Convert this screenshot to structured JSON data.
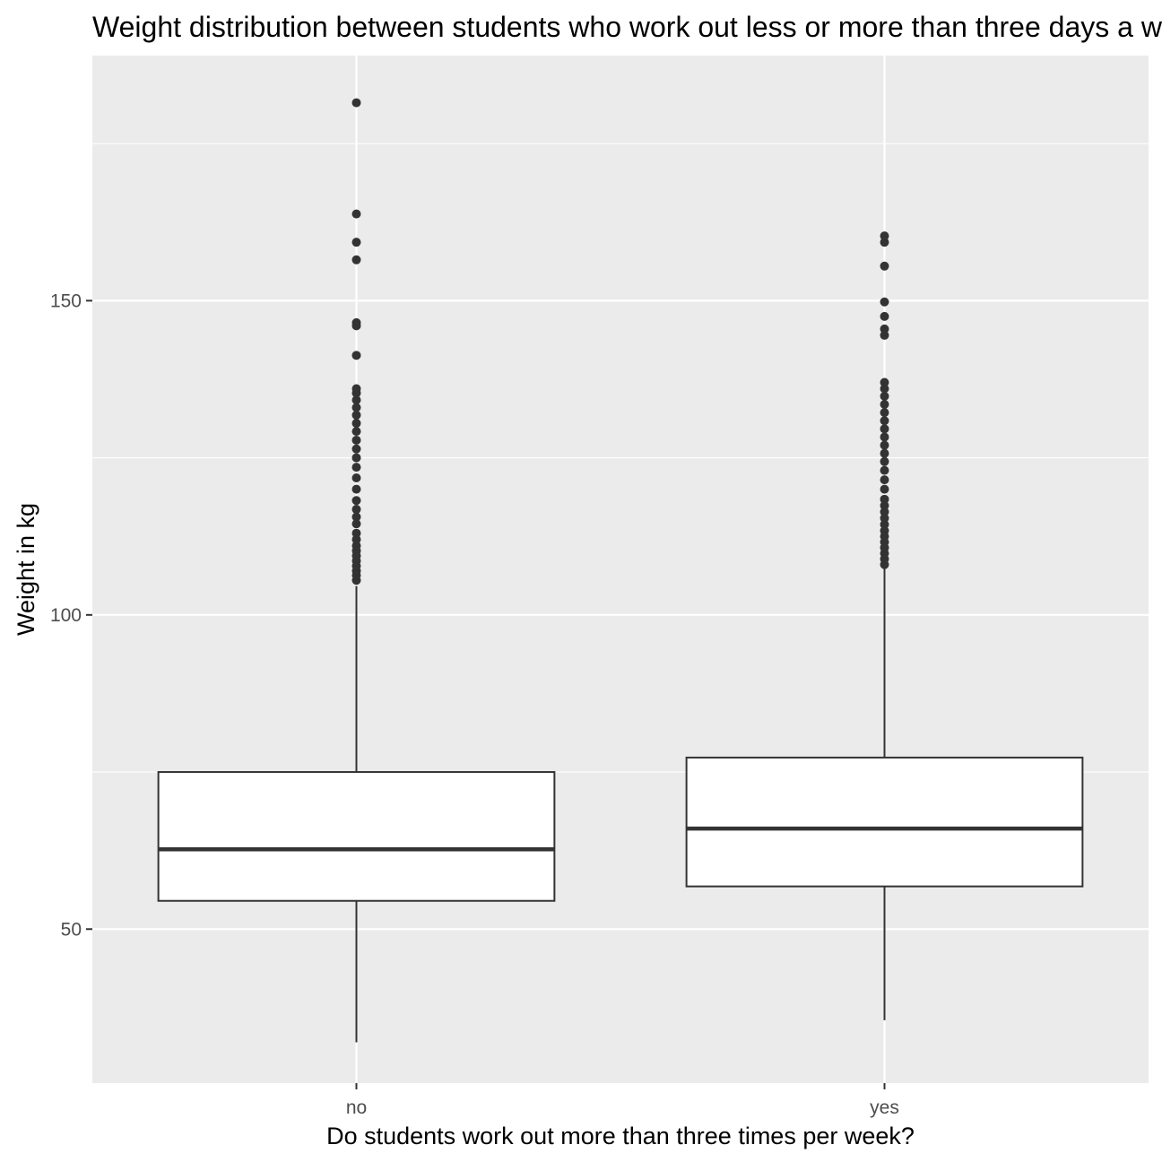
{
  "chart_data": {
    "type": "boxplot",
    "title": "Weight distribution between students who work out less or more than three days a week",
    "xlabel": "Do students work out more than three times per week?",
    "ylabel": "Weight in kg",
    "ylim": [
      25.5,
      189
    ],
    "y_ticks": [
      50,
      100,
      150
    ],
    "grid": true,
    "categories": [
      "no",
      "yes"
    ],
    "boxes": [
      {
        "category": "no",
        "whisker_low": 32,
        "q1": 54.5,
        "median": 62.7,
        "q3": 75,
        "whisker_high": 104.6,
        "outliers": [
          105.5,
          106.3,
          107,
          107.8,
          108.6,
          109.4,
          110.2,
          111,
          112,
          113,
          114.5,
          115.6,
          116.8,
          118.2,
          120,
          121.8,
          123.5,
          125,
          126.4,
          127.8,
          129.2,
          130.5,
          131.8,
          133,
          134.2,
          135.3,
          136,
          141.3,
          146,
          146.5,
          156.5,
          159.3,
          163.8,
          181.5
        ]
      },
      {
        "category": "yes",
        "whisker_low": 35.5,
        "q1": 56.8,
        "median": 66,
        "q3": 77.3,
        "whisker_high": 107.5,
        "outliers": [
          108,
          108.9,
          109.8,
          110.7,
          111.6,
          112.5,
          113.4,
          114.4,
          115.4,
          116.4,
          117.4,
          118.4,
          120,
          121.5,
          123,
          124.4,
          125.7,
          127,
          128.3,
          129.6,
          130.9,
          132.2,
          133.5,
          134.8,
          136,
          137,
          144.5,
          145.5,
          147.5,
          149.8,
          155.5,
          159.3,
          160.3
        ]
      }
    ]
  }
}
